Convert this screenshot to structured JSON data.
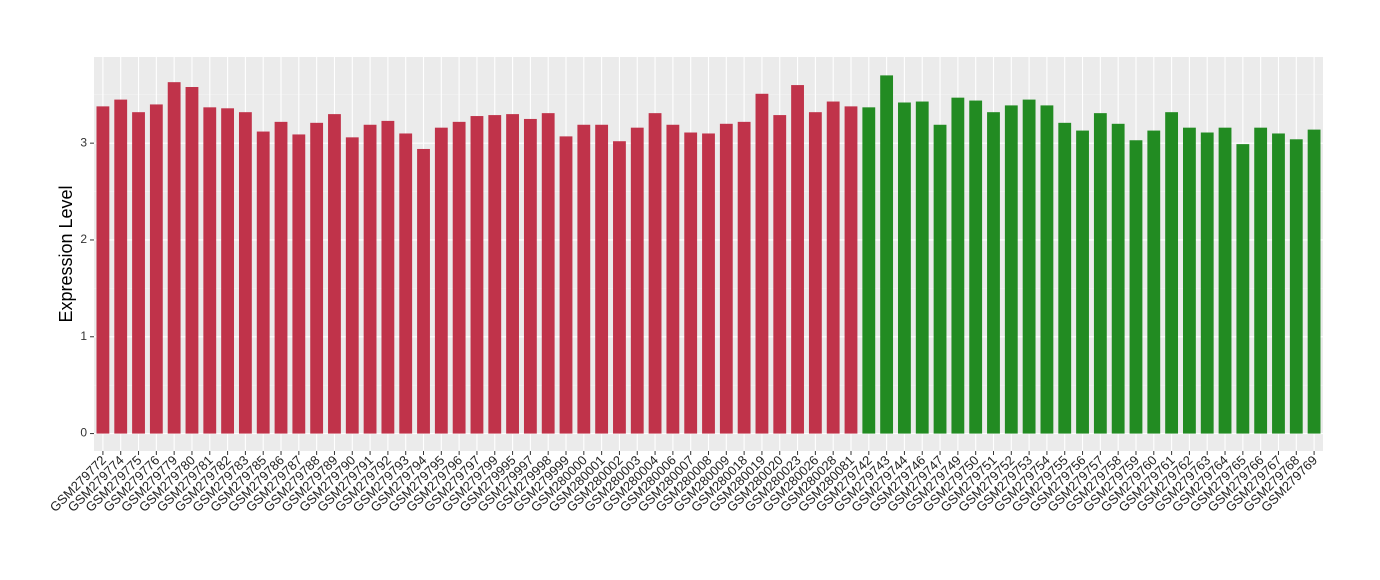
{
  "chart_data": {
    "type": "bar",
    "y_label": "Expression Level",
    "categories": [
      "GSM279772",
      "GSM279774",
      "GSM279775",
      "GSM279776",
      "GSM279779",
      "GSM279780",
      "GSM279781",
      "GSM279782",
      "GSM279783",
      "GSM279785",
      "GSM279786",
      "GSM279787",
      "GSM279788",
      "GSM279789",
      "GSM279790",
      "GSM279791",
      "GSM279792",
      "GSM279793",
      "GSM279794",
      "GSM279795",
      "GSM279796",
      "GSM279797",
      "GSM279799",
      "GSM279995",
      "GSM279997",
      "GSM279998",
      "GSM279999",
      "GSM280000",
      "GSM280001",
      "GSM280002",
      "GSM280003",
      "GSM280004",
      "GSM280006",
      "GSM280007",
      "GSM280008",
      "GSM280009",
      "GSM280018",
      "GSM280019",
      "GSM280020",
      "GSM280023",
      "GSM280026",
      "GSM280028",
      "GSM280081",
      "GSM279742",
      "GSM279743",
      "GSM279744",
      "GSM279746",
      "GSM279747",
      "GSM279749",
      "GSM279750",
      "GSM279751",
      "GSM279752",
      "GSM279753",
      "GSM279754",
      "GSM279755",
      "GSM279756",
      "GSM279757",
      "GSM279758",
      "GSM279759",
      "GSM279760",
      "GSM279761",
      "GSM279762",
      "GSM279763",
      "GSM279764",
      "GSM279765",
      "GSM279766",
      "GSM279767",
      "GSM279768",
      "GSM279769"
    ],
    "values": [
      3.38,
      3.45,
      3.32,
      3.4,
      3.63,
      3.58,
      3.37,
      3.36,
      3.32,
      3.12,
      3.22,
      3.09,
      3.21,
      3.3,
      3.06,
      3.19,
      3.23,
      3.1,
      2.94,
      3.16,
      3.22,
      3.28,
      3.29,
      3.3,
      3.25,
      3.31,
      3.07,
      3.19,
      3.19,
      3.02,
      3.16,
      3.31,
      3.19,
      3.11,
      3.1,
      3.2,
      3.22,
      3.51,
      3.29,
      3.6,
      3.32,
      3.43,
      3.38,
      3.37,
      3.7,
      3.42,
      3.43,
      3.19,
      3.47,
      3.44,
      3.32,
      3.39,
      3.45,
      3.39,
      3.21,
      3.13,
      3.31,
      3.2,
      3.03,
      3.13,
      3.32,
      3.16,
      3.11,
      3.16,
      2.99,
      3.16,
      3.1,
      3.04,
      3.14
    ],
    "colors": [
      "#c0334a",
      "#c0334a",
      "#c0334a",
      "#c0334a",
      "#c0334a",
      "#c0334a",
      "#c0334a",
      "#c0334a",
      "#c0334a",
      "#c0334a",
      "#c0334a",
      "#c0334a",
      "#c0334a",
      "#c0334a",
      "#c0334a",
      "#c0334a",
      "#c0334a",
      "#c0334a",
      "#c0334a",
      "#c0334a",
      "#c0334a",
      "#c0334a",
      "#c0334a",
      "#c0334a",
      "#c0334a",
      "#c0334a",
      "#c0334a",
      "#c0334a",
      "#c0334a",
      "#c0334a",
      "#c0334a",
      "#c0334a",
      "#c0334a",
      "#c0334a",
      "#c0334a",
      "#c0334a",
      "#c0334a",
      "#c0334a",
      "#c0334a",
      "#c0334a",
      "#c0334a",
      "#c0334a",
      "#c0334a",
      "#228b22",
      "#228b22",
      "#228b22",
      "#228b22",
      "#228b22",
      "#228b22",
      "#228b22",
      "#228b22",
      "#228b22",
      "#228b22",
      "#228b22",
      "#228b22",
      "#228b22",
      "#228b22",
      "#228b22",
      "#228b22",
      "#228b22",
      "#228b22",
      "#228b22",
      "#228b22",
      "#228b22",
      "#228b22",
      "#228b22",
      "#228b22",
      "#228b22",
      "#228b22"
    ],
    "ylim": [
      -0.18,
      3.89
    ],
    "yticks": [
      0,
      1,
      2,
      3
    ],
    "grid": true
  }
}
